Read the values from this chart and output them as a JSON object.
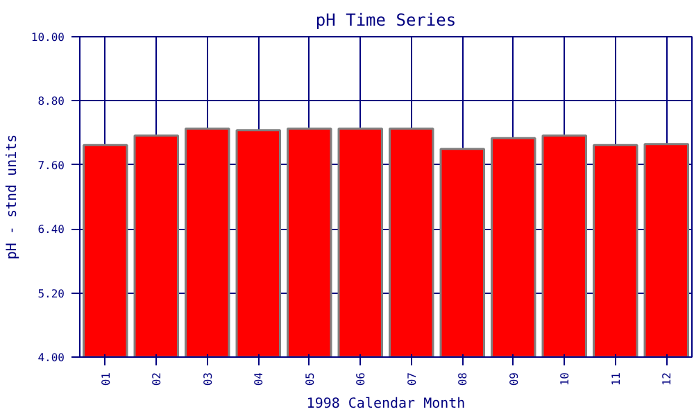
{
  "chart_data": {
    "type": "bar",
    "title": "pH Time Series",
    "xlabel": "1998 Calendar Month",
    "ylabel": "pH - stnd units",
    "categories": [
      "01",
      "02",
      "03",
      "04",
      "05",
      "06",
      "07",
      "08",
      "09",
      "10",
      "11",
      "12"
    ],
    "values": [
      7.97,
      8.15,
      8.28,
      8.25,
      8.28,
      8.28,
      8.28,
      7.9,
      8.1,
      8.15,
      7.97,
      7.99
    ],
    "color": "#ff0000",
    "ylim": [
      4,
      10
    ],
    "yticks": [
      {
        "value": 4,
        "label": "4.00"
      },
      {
        "value": 5.2,
        "label": "5.20"
      },
      {
        "value": 6.4,
        "label": "6.40"
      },
      {
        "value": 7.6,
        "label": "7.60"
      },
      {
        "value": 8.8,
        "label": "8.80"
      },
      {
        "value": 10,
        "label": "10.00"
      }
    ],
    "grid": true
  }
}
